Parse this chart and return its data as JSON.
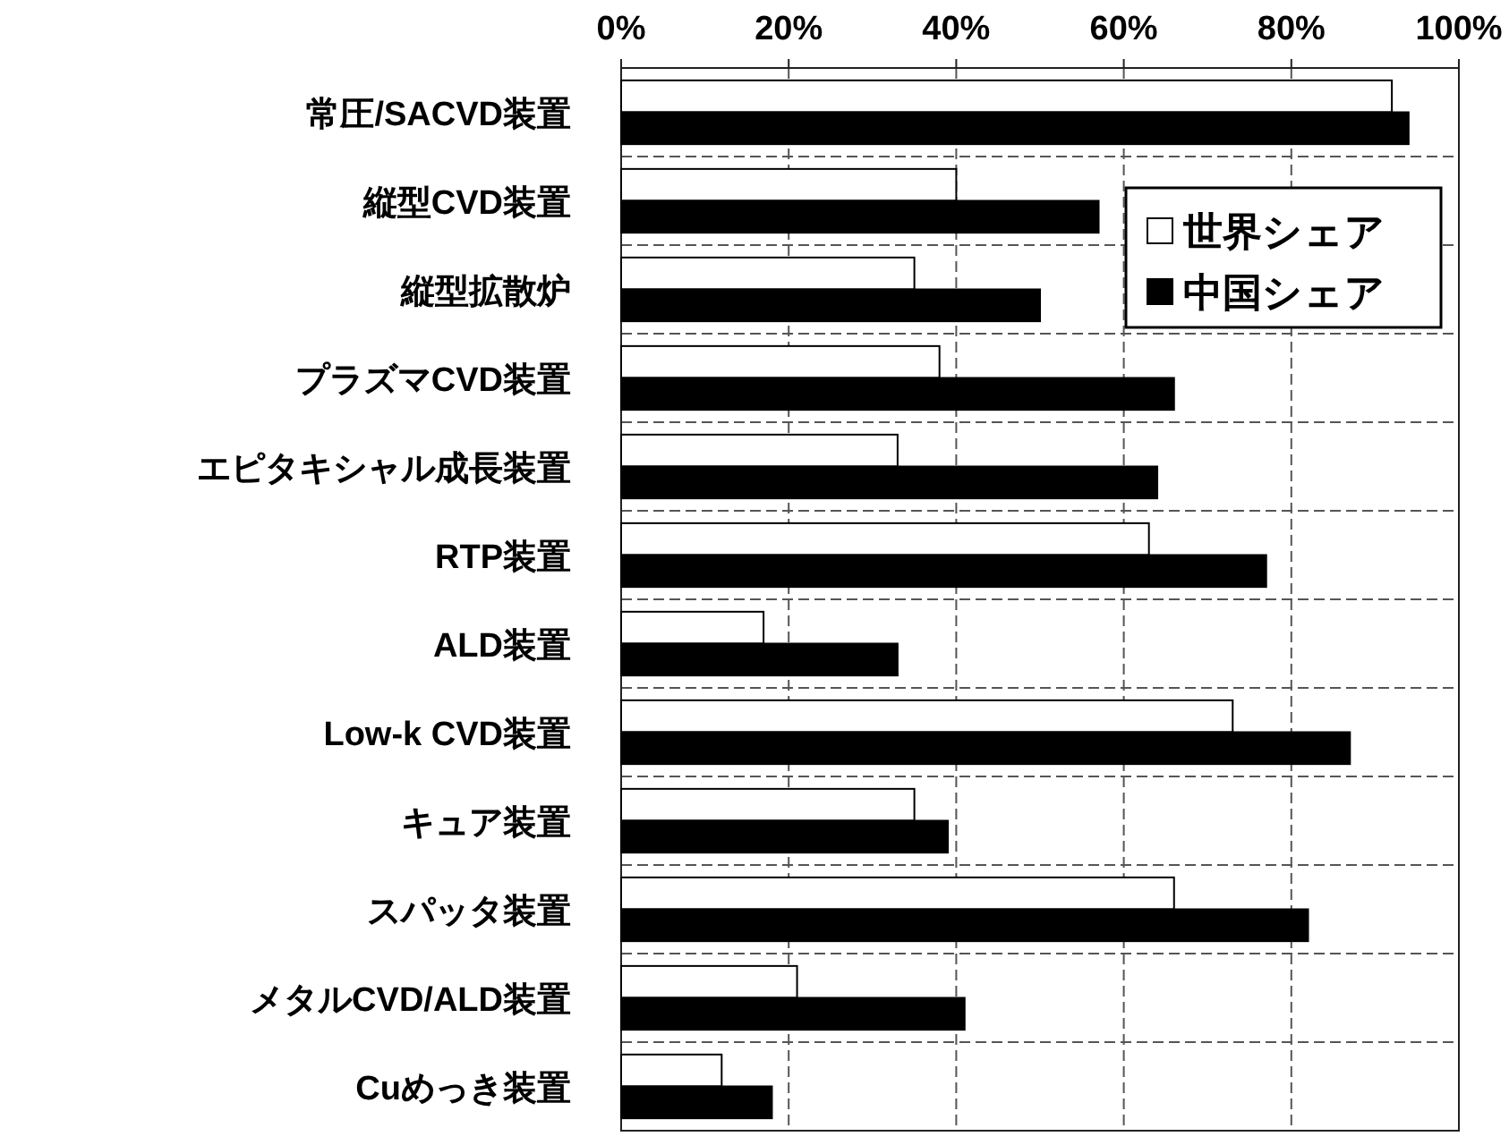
{
  "chart_data": {
    "type": "bar",
    "orientation": "horizontal",
    "categories": [
      "常圧/SACVD装置",
      "縦型CVD装置",
      "縦型拡散炉",
      "プラズマCVD装置",
      "エピタキシャル成長装置",
      "RTP装置",
      "ALD装置",
      "Low-k CVD装置",
      "キュア装置",
      "スパッタ装置",
      "メタルCVD/ALD装置",
      "Cuめっき装置"
    ],
    "series": [
      {
        "name": "世界シェア",
        "color": "#ffffff",
        "values": [
          92,
          40,
          35,
          38,
          33,
          63,
          17,
          73,
          35,
          66,
          21,
          12
        ]
      },
      {
        "name": "中国シェア",
        "color": "#000000",
        "values": [
          94,
          57,
          50,
          66,
          64,
          77,
          33,
          87,
          39,
          82,
          41,
          18
        ]
      }
    ],
    "xlim": [
      0,
      100
    ],
    "xticks": [
      {
        "value": 0,
        "label": "0%"
      },
      {
        "value": 20,
        "label": "20%"
      },
      {
        "value": 40,
        "label": "40%"
      },
      {
        "value": 60,
        "label": "60%"
      },
      {
        "value": 80,
        "label": "80%"
      },
      {
        "value": 100,
        "label": "100%"
      }
    ],
    "grid": true,
    "legend": "top right"
  }
}
